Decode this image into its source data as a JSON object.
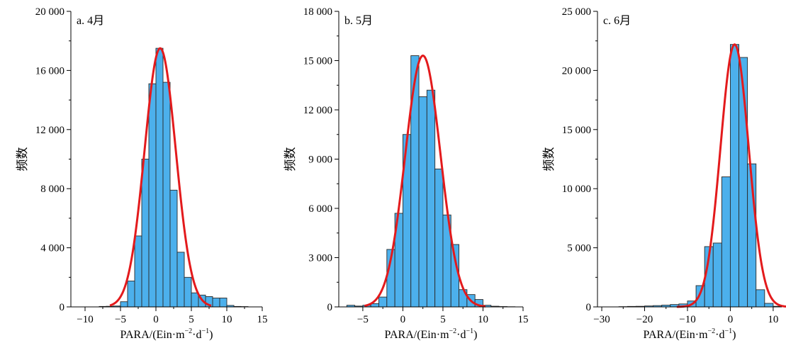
{
  "colors": {
    "bar_fill": "#4cb0ec",
    "bar_stroke": "#2a2a2a",
    "fit_curve": "#e31a1c",
    "axis": "#000000"
  },
  "chart_data": [
    {
      "type": "bar",
      "panel_label": "a. 4月",
      "xlabel": "PARA/(Ein·m",
      "xlabel_sup1": "−2",
      "xlabel_mid": "·d",
      "xlabel_sup2": "−1",
      "xlabel_end": ")",
      "ylabel": "频数",
      "xlim": [
        -12,
        15
      ],
      "ylim": [
        0,
        20000
      ],
      "xticks": [
        -10,
        -5,
        0,
        5,
        10,
        15
      ],
      "xtick_labels": [
        "−10",
        "−5",
        "0",
        "5",
        "10",
        "15"
      ],
      "yticks": [
        0,
        4000,
        8000,
        12000,
        16000,
        20000
      ],
      "ytick_labels": [
        "0",
        "4 000",
        "8 000",
        "12 000",
        "16 000",
        "20 000"
      ],
      "bin_width": 1,
      "bins": [
        {
          "x0": -8,
          "value": 30
        },
        {
          "x0": -7,
          "value": 40
        },
        {
          "x0": -6,
          "value": 60
        },
        {
          "x0": -5,
          "value": 350
        },
        {
          "x0": -4,
          "value": 1750
        },
        {
          "x0": -3,
          "value": 4800
        },
        {
          "x0": -2,
          "value": 10000
        },
        {
          "x0": -1,
          "value": 15100
        },
        {
          "x0": 0,
          "value": 17500
        },
        {
          "x0": 1,
          "value": 15200
        },
        {
          "x0": 2,
          "value": 7900
        },
        {
          "x0": 3,
          "value": 3700
        },
        {
          "x0": 4,
          "value": 2000
        },
        {
          "x0": 5,
          "value": 950
        },
        {
          "x0": 6,
          "value": 800
        },
        {
          "x0": 7,
          "value": 700
        },
        {
          "x0": 8,
          "value": 600
        },
        {
          "x0": 9,
          "value": 600
        },
        {
          "x0": 10,
          "value": 100
        },
        {
          "x0": 11,
          "value": 30
        },
        {
          "x0": 12,
          "value": 20
        }
      ],
      "fit": {
        "kind": "normal",
        "mean": 0.6,
        "sd": 2.2,
        "peak": 17500,
        "x_range": [
          -6.5,
          7.8
        ]
      }
    },
    {
      "type": "bar",
      "panel_label": "b. 5月",
      "xlabel": "PARA/(Ein·m",
      "xlabel_sup1": "−2",
      "xlabel_mid": "·d",
      "xlabel_sup2": "−1",
      "xlabel_end": ")",
      "ylabel": "频数",
      "xlim": [
        -8,
        15
      ],
      "ylim": [
        0,
        18000
      ],
      "xticks": [
        -5,
        0,
        5,
        10,
        15
      ],
      "xtick_labels": [
        "−5",
        "0",
        "5",
        "10",
        "15"
      ],
      "yticks": [
        0,
        3000,
        6000,
        9000,
        12000,
        15000,
        18000
      ],
      "ytick_labels": [
        "0",
        "3 000",
        "6 000",
        "9 000",
        "12 000",
        "15 000",
        "18 000"
      ],
      "bin_width": 1,
      "bins": [
        {
          "x0": -7,
          "value": 100
        },
        {
          "x0": -6,
          "value": 50
        },
        {
          "x0": -5,
          "value": 100
        },
        {
          "x0": -4,
          "value": 200
        },
        {
          "x0": -3,
          "value": 600
        },
        {
          "x0": -2,
          "value": 3500
        },
        {
          "x0": -1,
          "value": 5700
        },
        {
          "x0": 0,
          "value": 10500
        },
        {
          "x0": 1,
          "value": 15300
        },
        {
          "x0": 2,
          "value": 12800
        },
        {
          "x0": 3,
          "value": 13200
        },
        {
          "x0": 4,
          "value": 8400
        },
        {
          "x0": 5,
          "value": 5600
        },
        {
          "x0": 6,
          "value": 3800
        },
        {
          "x0": 7,
          "value": 1050
        },
        {
          "x0": 8,
          "value": 750
        },
        {
          "x0": 9,
          "value": 450
        },
        {
          "x0": 10,
          "value": 100
        },
        {
          "x0": 11,
          "value": 40
        },
        {
          "x0": 12,
          "value": 20
        },
        {
          "x0": 13,
          "value": 10
        }
      ],
      "fit": {
        "kind": "normal",
        "mean": 2.5,
        "sd": 2.2,
        "peak": 15300,
        "x_range": [
          -4.8,
          10.3
        ]
      }
    },
    {
      "type": "bar",
      "panel_label": "c. 6月",
      "xlabel": "PARA/(Ein·m",
      "xlabel_sup1": "−2",
      "xlabel_mid": "·d",
      "xlabel_sup2": "−1",
      "xlabel_end": ")",
      "ylabel": "频数",
      "xlim": [
        -31,
        12
      ],
      "ylim": [
        0,
        25000
      ],
      "xticks": [
        -30,
        -20,
        -10,
        0,
        10
      ],
      "xtick_labels": [
        "−30",
        "−20",
        "−10",
        "0",
        "10"
      ],
      "yticks": [
        0,
        5000,
        10000,
        15000,
        20000,
        25000
      ],
      "ytick_labels": [
        "0",
        "5 000",
        "10 000",
        "15 000",
        "20 000",
        "25 000"
      ],
      "bin_width": 2,
      "bins": [
        {
          "x0": -26,
          "value": 20
        },
        {
          "x0": -24,
          "value": 40
        },
        {
          "x0": -22,
          "value": 50
        },
        {
          "x0": -20,
          "value": 80
        },
        {
          "x0": -18,
          "value": 110
        },
        {
          "x0": -16,
          "value": 150
        },
        {
          "x0": -14,
          "value": 200
        },
        {
          "x0": -12,
          "value": 250
        },
        {
          "x0": -10,
          "value": 500
        },
        {
          "x0": -8,
          "value": 1800
        },
        {
          "x0": -6,
          "value": 5100
        },
        {
          "x0": -4,
          "value": 5400
        },
        {
          "x0": -2,
          "value": 11000
        },
        {
          "x0": 0,
          "value": 22200
        },
        {
          "x0": 2,
          "value": 21100
        },
        {
          "x0": 4,
          "value": 12100
        },
        {
          "x0": 6,
          "value": 1450
        },
        {
          "x0": 8,
          "value": 300
        },
        {
          "x0": 10,
          "value": 50
        }
      ],
      "fit": {
        "kind": "normal",
        "mean": 1.0,
        "sd": 3.3,
        "peak": 22200,
        "x_range": [
          -12.5,
          13
        ]
      }
    }
  ]
}
